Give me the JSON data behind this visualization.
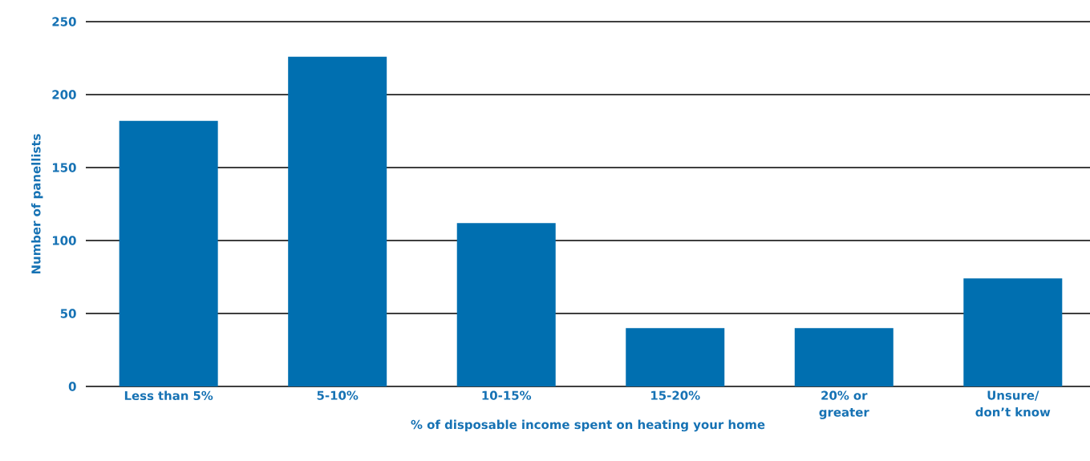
{
  "chart_data": {
    "type": "bar",
    "xlabel": "% of disposable income spent on heating your home",
    "ylabel": "Number of panellists",
    "categories": [
      "Less than 5%",
      "5-10%",
      "10-15%",
      "15-20%",
      "20% or greater",
      "Unsure/ don’t know"
    ],
    "values": [
      182,
      226,
      112,
      40,
      40,
      74
    ],
    "color": "#006fb0",
    "ylim": [
      0,
      250
    ],
    "yticks": [
      0,
      50,
      100,
      150,
      200,
      250
    ],
    "grid": "y"
  }
}
